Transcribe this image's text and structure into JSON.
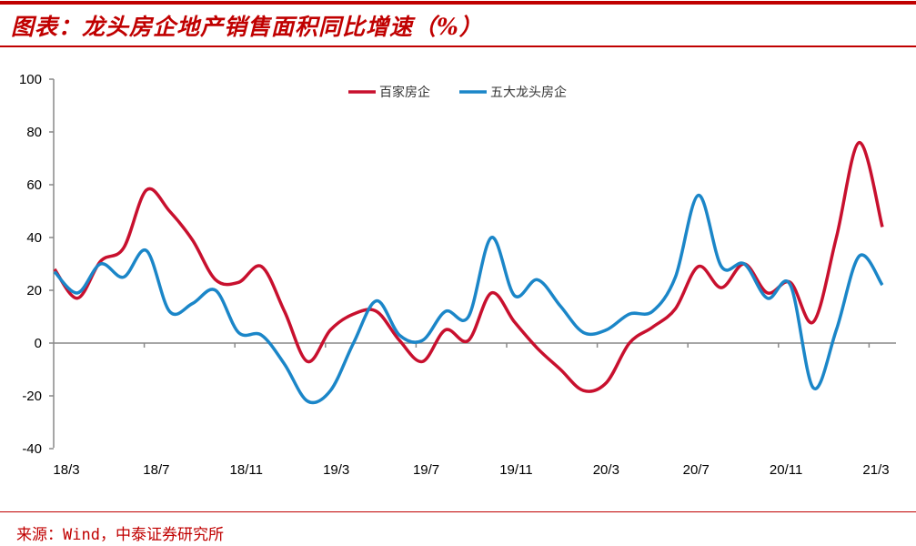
{
  "title": "图表：龙头房企地产销售面积同比增速（%）",
  "source": "来源：Wind，中泰证券研究所",
  "chart_data": {
    "type": "line",
    "title": "图表：龙头房企地产销售面积同比增速（%）",
    "xlabel": "",
    "ylabel": "",
    "ylim": [
      -40,
      100
    ],
    "yticks": [
      "100",
      "80",
      "60",
      "40",
      "20",
      "0",
      "-20",
      "-40"
    ],
    "xtick_labels": [
      "18/3",
      "18/7",
      "18/11",
      "19/3",
      "19/7",
      "19/11",
      "20/3",
      "20/7",
      "20/11",
      "21/3"
    ],
    "legend_position": "top-center",
    "grid": false,
    "x_count": 37,
    "series": [
      {
        "name": "百家房企",
        "color": "#C8102E",
        "values": [
          28,
          17,
          31,
          36,
          58,
          50,
          39,
          24,
          23,
          29,
          12,
          -7,
          5,
          11,
          12,
          1,
          -7,
          5,
          1,
          19,
          8,
          -2,
          -10,
          -18,
          -15,
          0,
          6,
          13,
          29,
          21,
          30,
          19,
          23,
          8,
          40,
          76,
          44
        ]
      },
      {
        "name": "五大龙头房企",
        "color": "#1B86C8",
        "values": [
          27,
          19,
          30,
          25,
          35,
          12,
          15,
          20,
          4,
          3,
          -8,
          -22,
          -18,
          0,
          16,
          3,
          1,
          12,
          10,
          40,
          18,
          24,
          14,
          4,
          5,
          11,
          12,
          25,
          56,
          29,
          30,
          17,
          22,
          -17,
          5,
          33,
          22
        ]
      }
    ]
  }
}
